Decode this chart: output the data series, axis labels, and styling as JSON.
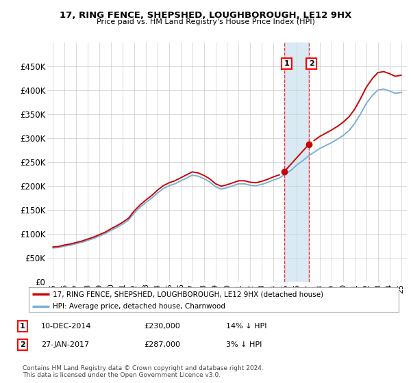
{
  "title": "17, RING FENCE, SHEPSHED, LOUGHBOROUGH, LE12 9HX",
  "subtitle": "Price paid vs. HM Land Registry's House Price Index (HPI)",
  "property_label": "17, RING FENCE, SHEPSHED, LOUGHBOROUGH, LE12 9HX (detached house)",
  "hpi_label": "HPI: Average price, detached house, Charnwood",
  "footnote": "Contains HM Land Registry data © Crown copyright and database right 2024.\nThis data is licensed under the Open Government Licence v3.0.",
  "purchase1_date": "10-DEC-2014",
  "purchase1_price": 230000,
  "purchase1_note": "14% ↓ HPI",
  "purchase2_date": "27-JAN-2017",
  "purchase2_price": 287000,
  "purchase2_note": "3% ↓ HPI",
  "purchase1_year": 2014.94,
  "purchase2_year": 2017.07,
  "ylim": [
    0,
    500000
  ],
  "xlim_start": 1994.5,
  "xlim_end": 2025.5,
  "hpi_color": "#7bafd4",
  "property_color": "#cc0000",
  "shading_color": "#daeaf5",
  "background_color": "#ffffff",
  "grid_color": "#cccccc",
  "hpi_years": [
    1995,
    1995.5,
    1996,
    1996.5,
    1997,
    1997.5,
    1998,
    1998.5,
    1999,
    1999.5,
    2000,
    2000.5,
    2001,
    2001.5,
    2002,
    2002.5,
    2003,
    2003.5,
    2004,
    2004.5,
    2005,
    2005.5,
    2006,
    2006.5,
    2007,
    2007.5,
    2008,
    2008.5,
    2009,
    2009.5,
    2010,
    2010.5,
    2011,
    2011.5,
    2012,
    2012.5,
    2013,
    2013.5,
    2014,
    2014.5,
    2015,
    2015.5,
    2016,
    2016.5,
    2017,
    2017.5,
    2018,
    2018.5,
    2019,
    2019.5,
    2020,
    2020.5,
    2021,
    2021.5,
    2022,
    2022.5,
    2023,
    2023.5,
    2024,
    2024.5,
    2025
  ],
  "hpi_values": [
    70000,
    71000,
    74000,
    76000,
    79000,
    82000,
    86000,
    90000,
    95000,
    100000,
    107000,
    113000,
    120000,
    128000,
    143000,
    155000,
    165000,
    174000,
    185000,
    194000,
    200000,
    204000,
    210000,
    216000,
    222000,
    220000,
    215000,
    208000,
    198000,
    193000,
    196000,
    200000,
    204000,
    204000,
    201000,
    200000,
    203000,
    207000,
    212000,
    216000,
    224000,
    232000,
    243000,
    252000,
    262000,
    270000,
    278000,
    284000,
    290000,
    297000,
    305000,
    315000,
    330000,
    350000,
    372000,
    388000,
    400000,
    402000,
    398000,
    393000,
    395000
  ],
  "yticks": [
    0,
    50000,
    100000,
    150000,
    200000,
    250000,
    300000,
    350000,
    400000,
    450000
  ],
  "ytick_labels": [
    "£0",
    "£50K",
    "£100K",
    "£150K",
    "£200K",
    "£250K",
    "£300K",
    "£350K",
    "£400K",
    "£450K"
  ],
  "xtick_years": [
    1995,
    1996,
    1997,
    1998,
    1999,
    2000,
    2001,
    2002,
    2003,
    2004,
    2005,
    2006,
    2007,
    2008,
    2009,
    2010,
    2011,
    2012,
    2013,
    2014,
    2015,
    2016,
    2017,
    2018,
    2019,
    2020,
    2021,
    2022,
    2023,
    2024,
    2025
  ]
}
